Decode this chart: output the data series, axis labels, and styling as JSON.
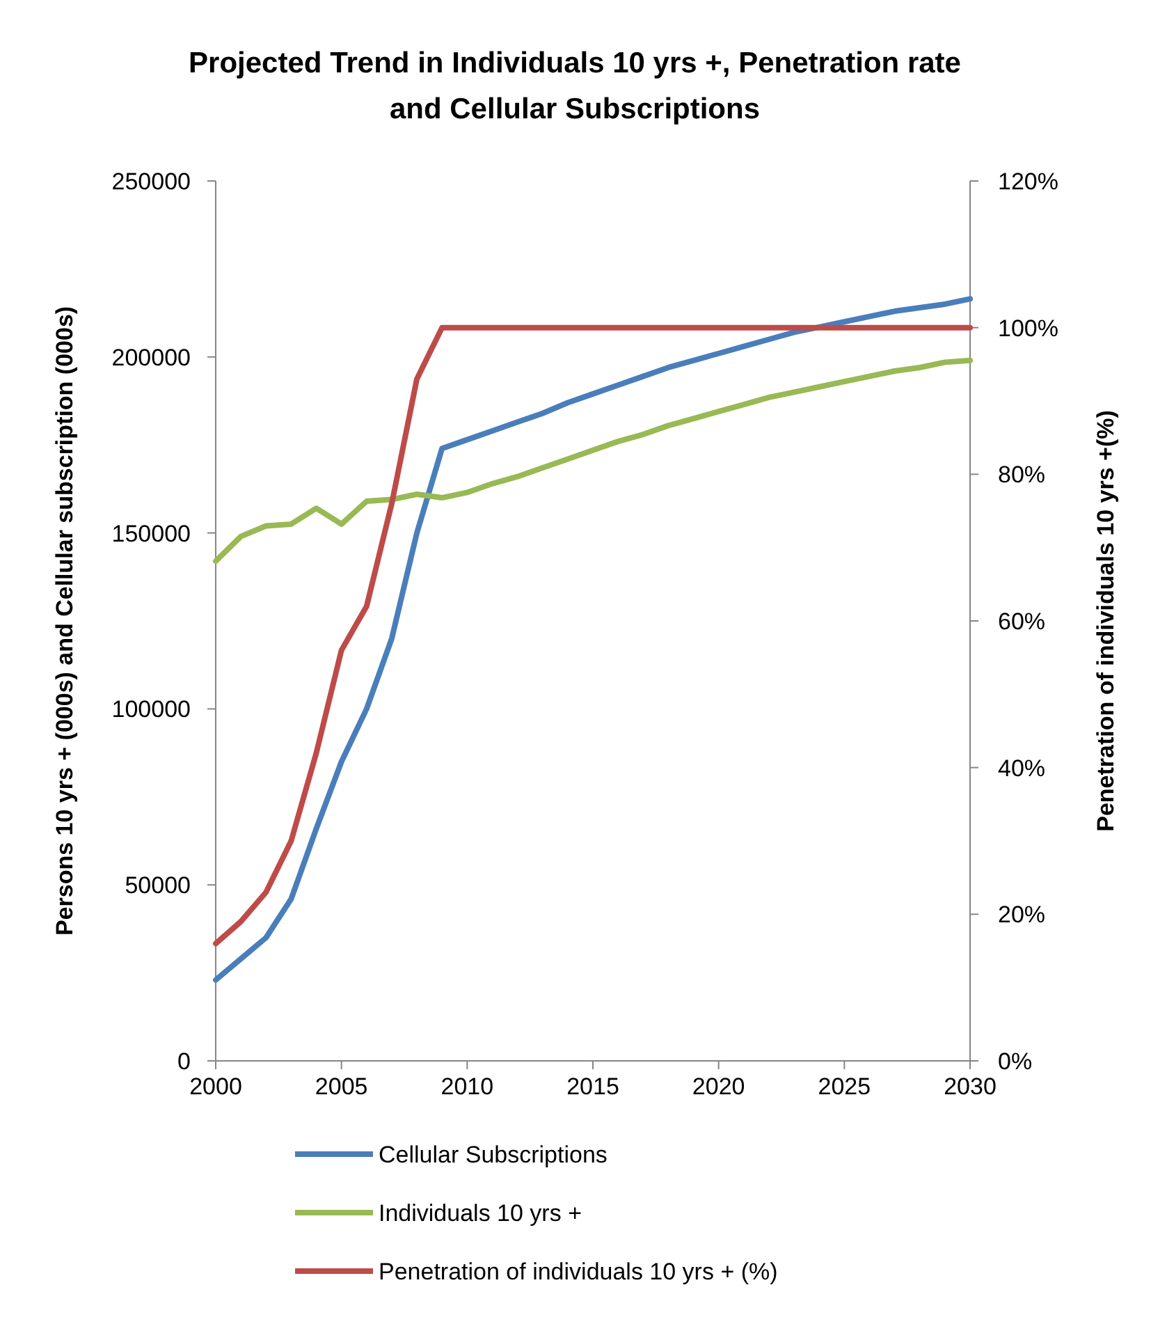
{
  "chart_data": {
    "type": "line",
    "title": "Projected Trend in Individuals 10 yrs +, Penetration rate and Cellular Subscriptions",
    "ylabel": "Persons 10 yrs + (000s) and  Cellular subscription  (000s)",
    "y2label": "Penetration of individuals 10 yrs +(%)",
    "x": [
      2000,
      2001,
      2002,
      2003,
      2004,
      2005,
      2006,
      2007,
      2008,
      2009,
      2010,
      2011,
      2012,
      2013,
      2014,
      2015,
      2016,
      2017,
      2018,
      2019,
      2020,
      2021,
      2022,
      2023,
      2024,
      2025,
      2026,
      2027,
      2028,
      2029,
      2030
    ],
    "series": [
      {
        "name": "Cellular Subscriptions",
        "color": "#4a7ebb",
        "values": [
          23000,
          29000,
          35000,
          46000,
          66000,
          85000,
          100000,
          120000,
          150000,
          174000,
          176500,
          179000,
          181500,
          184000,
          187000,
          189500,
          192000,
          194500,
          197000,
          199000,
          201000,
          203000,
          205000,
          207000,
          208500,
          210000,
          211500,
          213000,
          214000,
          215000,
          216500
        ]
      },
      {
        "name": "Individuals 10 yrs +",
        "color": "#98b954",
        "values": [
          142000,
          149000,
          152000,
          152500,
          157000,
          152500,
          159000,
          159500,
          161000,
          160000,
          161500,
          164000,
          166000,
          168500,
          171000,
          173500,
          176000,
          178000,
          180500,
          182500,
          184500,
          186500,
          188500,
          190000,
          191500,
          193000,
          194500,
          196000,
          197000,
          198500,
          199000
        ]
      },
      {
        "name": "Penetration of individuals 10 yrs + (%)",
        "color": "#be4b48",
        "axis": "y2",
        "values": [
          16,
          19,
          23,
          30,
          42,
          56,
          62,
          76,
          93,
          100,
          100,
          100,
          100,
          100,
          100,
          100,
          100,
          100,
          100,
          100,
          100,
          100,
          100,
          100,
          100,
          100,
          100,
          100,
          100,
          100,
          100
        ]
      }
    ],
    "xlim": [
      2000,
      2030
    ],
    "xticks": [
      2000,
      2005,
      2010,
      2015,
      2020,
      2025,
      2030
    ],
    "ylim": [
      0,
      250000
    ],
    "yticks": [
      0,
      50000,
      100000,
      150000,
      200000,
      250000
    ],
    "y2lim": [
      0,
      120
    ],
    "y2ticks": [
      {
        "value": 0,
        "label": "0%"
      },
      {
        "value": 20,
        "label": "20%"
      },
      {
        "value": 40,
        "label": "40%"
      },
      {
        "value": 60,
        "label": "60%"
      },
      {
        "value": 80,
        "label": "80%"
      },
      {
        "value": 100,
        "label": "100%"
      },
      {
        "value": 120,
        "label": "120%"
      }
    ],
    "grid": false,
    "legend": "bottom",
    "line_style": "solid"
  }
}
